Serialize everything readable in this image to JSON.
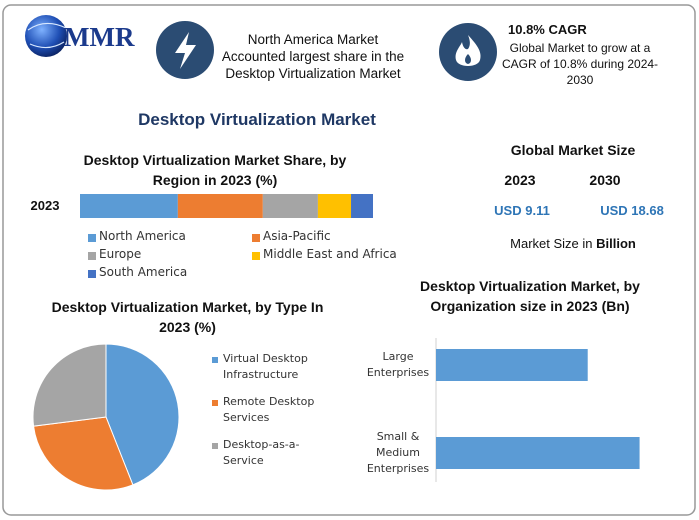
{
  "header": {
    "logo_text": "MMR",
    "highlight": "North America Market Accounted largest share in the Desktop Virtualization Market",
    "cagr_title": "10.8% CAGR",
    "cagr_text": "Global Market to grow at a CAGR of 10.8% during 2024-2030"
  },
  "title": "Desktop Virtualization Market",
  "market_size": {
    "title": "Global Market Size",
    "years": [
      "2023",
      "2030"
    ],
    "values": [
      "USD 9.11",
      "USD 18.68"
    ],
    "note": "Market Size in ",
    "note_bold": "Billion"
  },
  "chart_data": [
    {
      "type": "stacked-bar",
      "title": "Desktop Virtualization Market Share, by Region in 2023 (%)",
      "categories": [
        "2023"
      ],
      "xlim": [
        0,
        100
      ],
      "series": [
        {
          "name": "North America",
          "color": "#5b9bd5",
          "values": [
            33.4
          ]
        },
        {
          "name": "Asia-Pacific",
          "color": "#ed7d31",
          "values": [
            29
          ]
        },
        {
          "name": "Europe",
          "color": "#a5a5a5",
          "values": [
            18.8
          ]
        },
        {
          "name": "Middle East and Africa",
          "color": "#ffc000",
          "values": [
            11.3
          ]
        },
        {
          "name": "South America",
          "color": "#4472c4",
          "values": [
            7.5
          ]
        }
      ]
    },
    {
      "type": "pie",
      "title": "Desktop Virtualization Market, by Type In 2023 (%)",
      "categories": [
        "Virtual Desktop Infrastructure",
        "Remote Desktop Services",
        "Desktop-as-a-Service"
      ],
      "values": [
        44,
        29,
        27
      ],
      "colors": [
        "#5b9bd5",
        "#ed7d31",
        "#a5a5a5"
      ]
    },
    {
      "type": "hbar",
      "title": "Desktop Virtualization Market, by Organization size in 2023 (Bn)",
      "categories": [
        "Large Enterprises",
        "Small & Medium Enterprises"
      ],
      "values": [
        3.89,
        5.22
      ],
      "color": "#5b9bd5",
      "xlim": [
        0,
        6
      ]
    }
  ]
}
